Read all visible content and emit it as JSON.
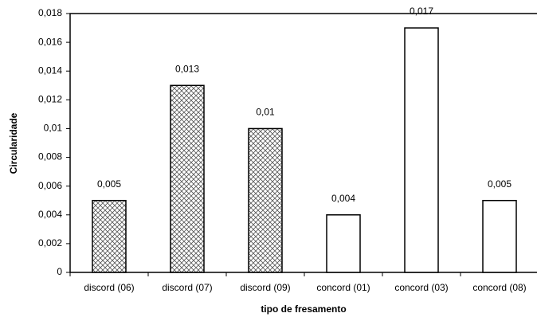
{
  "chart_data": {
    "type": "bar",
    "x_label": "tipo de fresamento",
    "y_label": "Circularidade",
    "categories": [
      "discord (06)",
      "discord (07)",
      "discord (09)",
      "concord (01)",
      "concord (03)",
      "concord (08)"
    ],
    "values": [
      0.005,
      0.013,
      0.01,
      0.004,
      0.017,
      0.005
    ],
    "value_labels": [
      "0,005",
      "0,013",
      "0,01",
      "0,004",
      "0,017",
      "0,005"
    ],
    "bar_styles": [
      "crosshatch",
      "crosshatch",
      "crosshatch",
      "plain",
      "plain",
      "plain"
    ],
    "color": "#000000",
    "ylim": [
      0,
      0.018
    ],
    "yticks": [
      0,
      {
        "value": 0.002,
        "label": "0,002"
      },
      {
        "value": 0.004,
        "label": "0,004"
      },
      {
        "value": 0.006,
        "label": "0,006"
      },
      {
        "value": 0.008,
        "label": "0,008"
      },
      {
        "value": 0.01,
        "label": "0,01"
      },
      {
        "value": 0.012,
        "label": "0,012"
      },
      {
        "value": 0.014,
        "label": "0,014"
      },
      {
        "value": 0.016,
        "label": "0,016"
      },
      {
        "value": 0.018,
        "label": "0,018"
      }
    ]
  }
}
